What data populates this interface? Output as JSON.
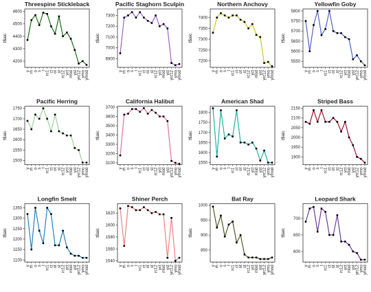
{
  "chart_data": [
    {
      "type": "line",
      "title": "Threespine Stickleback",
      "ylabel": "t$aic",
      "color": "#1a6b1a",
      "categories": [
        "y",
        "m",
        "o",
        "s",
        "t",
        "rc1",
        "ct",
        "ot",
        "st",
        "rc12",
        "yct",
        "mod",
        "yst",
        "yrc12",
        "ymo",
        "ymod"
      ],
      "values": [
        4370,
        4530,
        4570,
        4490,
        4590,
        4580,
        4480,
        4420,
        4560,
        4400,
        4430,
        4380,
        4290,
        4180,
        4200,
        4170
      ],
      "ylim": [
        4150,
        4620
      ],
      "yticks": [
        4200,
        4300,
        4400,
        4500,
        4600
      ]
    },
    {
      "type": "line",
      "title": "Pacific Staghorn Sculpin",
      "ylabel": "t$aic",
      "color": "#9a5fd0",
      "categories": [
        "y",
        "m",
        "o",
        "s",
        "t",
        "rc1",
        "ct",
        "ot",
        "st",
        "rc12",
        "yct",
        "mod",
        "yst",
        "yrc12",
        "ymo",
        "ymod"
      ],
      "values": [
        6950,
        7280,
        7300,
        7330,
        7280,
        7330,
        7280,
        7250,
        7230,
        7300,
        7200,
        7220,
        7180,
        6860,
        6840,
        6850
      ],
      "ylim": [
        6820,
        7360
      ],
      "yticks": [
        6900,
        7000,
        7100,
        7200,
        7300
      ]
    },
    {
      "type": "line",
      "title": "Northern Anchovy",
      "ylabel": "t$aic",
      "color": "#c8c820",
      "categories": [
        "y",
        "m",
        "o",
        "s",
        "t",
        "rc1",
        "ct",
        "ot",
        "st",
        "rc12",
        "yct",
        "mod",
        "yst",
        "yrc12",
        "ymo",
        "ymod"
      ],
      "values": [
        7330,
        7400,
        7420,
        7410,
        7400,
        7410,
        7410,
        7390,
        7380,
        7350,
        7370,
        7320,
        7310,
        7190,
        7195,
        7175
      ],
      "ylim": [
        7170,
        7440
      ],
      "yticks": [
        7200,
        7250,
        7300,
        7350,
        7400
      ]
    },
    {
      "type": "line",
      "title": "Yellowfin Goby",
      "ylabel": "t$aic",
      "color": "#5060c0",
      "categories": [
        "y",
        "m",
        "o",
        "s",
        "t",
        "rc1",
        "ct",
        "ot",
        "st",
        "rc12",
        "yct",
        "mod",
        "yst",
        "yrc12",
        "ymo",
        "ymod"
      ],
      "values": [
        5750,
        5600,
        5730,
        5800,
        5680,
        5710,
        5800,
        5700,
        5690,
        5690,
        5670,
        5660,
        5560,
        5580,
        5550,
        5530
      ],
      "ylim": [
        5520,
        5810
      ],
      "yticks": [
        5550,
        5600,
        5650,
        5700,
        5750,
        5800
      ]
    },
    {
      "type": "line",
      "title": "Pacific Herring",
      "ylabel": "t$aic",
      "color": "#9ed09e",
      "categories": [
        "y",
        "m",
        "o",
        "s",
        "t",
        "rc1",
        "ct",
        "ot",
        "st",
        "rc12",
        "yct",
        "mod",
        "yst",
        "yrc12",
        "ymo",
        "ymod"
      ],
      "values": [
        1690,
        1650,
        1720,
        1700,
        1750,
        1700,
        1640,
        1720,
        1640,
        1630,
        1620,
        1620,
        1560,
        1550,
        1490,
        1490
      ],
      "ylim": [
        1480,
        1760
      ],
      "yticks": [
        1500,
        1550,
        1600,
        1650,
        1700,
        1750
      ]
    },
    {
      "type": "line",
      "title": "California Halibut",
      "ylabel": "t$aic",
      "color": "#e070a0",
      "categories": [
        "y",
        "m",
        "o",
        "s",
        "t",
        "rc1",
        "ct",
        "ot",
        "st",
        "rc12",
        "yct",
        "mod",
        "yst",
        "yrc12",
        "ymo",
        "ymod"
      ],
      "values": [
        3180,
        3620,
        3630,
        3680,
        3680,
        3650,
        3690,
        3630,
        3670,
        3640,
        3600,
        3600,
        3550,
        3120,
        3100,
        3090
      ],
      "ylim": [
        3080,
        3710
      ],
      "yticks": [
        3100,
        3200,
        3300,
        3400,
        3500,
        3600,
        3700
      ]
    },
    {
      "type": "line",
      "title": "American Shad",
      "ylabel": "t$aic",
      "color": "#20b0a0",
      "categories": [
        "y",
        "m",
        "o",
        "s",
        "t",
        "rc1",
        "ct",
        "ot",
        "st",
        "rc12",
        "yct",
        "mod",
        "yst",
        "yrc12",
        "ymo",
        "ymod"
      ],
      "values": [
        1820,
        1580,
        1810,
        1670,
        1690,
        1680,
        1810,
        1650,
        1650,
        1640,
        1650,
        1620,
        1560,
        1610,
        1550,
        1550
      ],
      "ylim": [
        1540,
        1830
      ],
      "yticks": [
        1550,
        1600,
        1650,
        1700,
        1750,
        1800
      ]
    },
    {
      "type": "line",
      "title": "Striped Bass",
      "ylabel": "t$aic",
      "color": "#a01030",
      "categories": [
        "y",
        "m",
        "o",
        "s",
        "t",
        "rc1",
        "ct",
        "ot",
        "st",
        "rc12",
        "yct",
        "mod",
        "yst",
        "yrc12",
        "ymo",
        "ymod"
      ],
      "values": [
        2080,
        2070,
        2140,
        2080,
        2140,
        2080,
        2080,
        2100,
        2080,
        2030,
        2080,
        2000,
        1960,
        1900,
        1890,
        1870
      ],
      "ylim": [
        1860,
        2160
      ],
      "yticks": [
        1900,
        1950,
        2000,
        2050,
        2100,
        2150
      ]
    },
    {
      "type": "line",
      "title": "Longfin Smelt",
      "ylabel": "t$aic",
      "color": "#2080c0",
      "categories": [
        "y",
        "m",
        "o",
        "s",
        "t",
        "rc1",
        "ct",
        "ot",
        "st",
        "rc12",
        "yct",
        "mod",
        "yst",
        "yrc12",
        "ymo",
        "ymod"
      ],
      "values": [
        1320,
        1150,
        1350,
        1240,
        1180,
        1350,
        1320,
        1170,
        1170,
        1240,
        1160,
        1130,
        1120,
        1120,
        1110,
        1110
      ],
      "ylim": [
        1090,
        1370
      ],
      "yticks": [
        1100,
        1150,
        1200,
        1250,
        1300,
        1350
      ]
    },
    {
      "type": "line",
      "title": "Shiner Perch",
      "ylabel": "t$aic",
      "color": "#f08080",
      "categories": [
        "y",
        "m",
        "o",
        "s",
        "t",
        "rc1",
        "ct",
        "ot",
        "st",
        "rc12",
        "yct",
        "mod",
        "yst",
        "yrc12",
        "ymo",
        "ymod"
      ],
      "values": [
        1628,
        1565,
        1632,
        1630,
        1625,
        1625,
        1630,
        1625,
        1620,
        1622,
        1618,
        1618,
        1545,
        1612,
        1540,
        1545
      ],
      "ylim": [
        1538,
        1636
      ],
      "yticks": [
        1540,
        1560,
        1580,
        1600,
        1620
      ]
    },
    {
      "type": "line",
      "title": "Bat Ray",
      "ylabel": "t$aic",
      "color": "#4a5a20",
      "categories": [
        "y",
        "m",
        "o",
        "s",
        "t",
        "rc1",
        "ct",
        "ot",
        "st",
        "rc12",
        "yct",
        "mod",
        "yst",
        "yrc12",
        "ymo",
        "ymod"
      ],
      "values": [
        995,
        925,
        965,
        895,
        935,
        945,
        875,
        900,
        835,
        825,
        825,
        825,
        820,
        820,
        820,
        825
      ],
      "ylim": [
        810,
        1005
      ],
      "yticks": [
        850,
        900,
        950,
        1000
      ]
    },
    {
      "type": "line",
      "title": "Leopard Shark",
      "ylabel": "t$aic",
      "color": "#6a3a9a",
      "categories": [
        "y",
        "m",
        "o",
        "s",
        "t",
        "rc1",
        "ct",
        "ot",
        "st",
        "rc12",
        "yct",
        "mod",
        "yst",
        "yrc12",
        "ymo",
        "ymod"
      ],
      "values": [
        690,
        730,
        735,
        660,
        730,
        720,
        650,
        650,
        710,
        630,
        630,
        620,
        600,
        595,
        575,
        575
      ],
      "ylim": [
        568,
        745
      ],
      "yticks": [
        600,
        650,
        700
      ]
    }
  ]
}
